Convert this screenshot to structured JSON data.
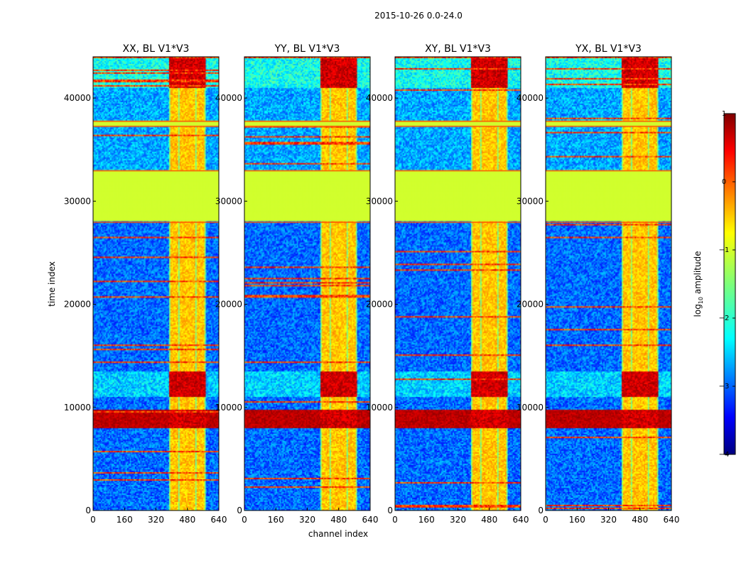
{
  "figure": {
    "suptitle": "2015-10-26 0.0-24.0"
  },
  "chart_data": {
    "type": "heatmap",
    "title": "2015-10-26 0.0-24.0",
    "xlabel": "channel index",
    "ylabel": "time index",
    "xlim": [
      0,
      640
    ],
    "ylim": [
      0,
      44000
    ],
    "xticks": [
      0,
      160,
      320,
      480,
      640
    ],
    "yticks": [
      0,
      10000,
      20000,
      30000,
      40000
    ],
    "colorbar": {
      "label_prefix": "log",
      "label_sub": "10",
      "label_suffix": " amplitude",
      "range": [
        -4,
        1
      ],
      "ticks": [
        "1",
        "0",
        "−1",
        "−2",
        "−3",
        "−4"
      ],
      "colormap": "jet"
    },
    "features": {
      "flagged_time_ranges": [
        [
          28000,
          33000
        ],
        [
          37300,
          37800
        ]
      ],
      "rfi_channel_range": [
        385,
        570
      ],
      "high_amplitude_time_ranges": [
        [
          8000,
          9700
        ],
        [
          11000,
          13500
        ],
        [
          41000,
          44000
        ]
      ]
    },
    "panels": [
      {
        "title": "XX, BL V1*V3",
        "polarization": "XX",
        "baseline": "V1*V3"
      },
      {
        "title": "YY, BL V1*V3",
        "polarization": "YY",
        "baseline": "V1*V3"
      },
      {
        "title": "XY, BL V1*V3",
        "polarization": "XY",
        "baseline": "V1*V3"
      },
      {
        "title": "YX, BL V1*V3",
        "polarization": "YX",
        "baseline": "V1*V3"
      }
    ]
  }
}
